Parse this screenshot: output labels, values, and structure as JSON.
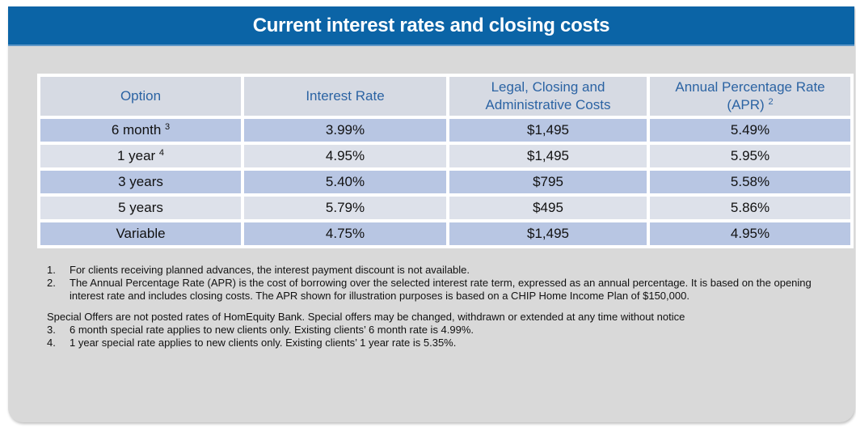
{
  "title": "Current interest rates and closing costs",
  "table": {
    "headers": {
      "option": "Option",
      "interest_rate": "Interest Rate",
      "costs_line1": "Legal, Closing and",
      "costs_line2": "Administrative Costs",
      "apr_line1": "Annual Percentage Rate",
      "apr_line2": "(APR)",
      "apr_sup": "2"
    },
    "rows": [
      {
        "option": "6 month",
        "sup": "3",
        "rate": "3.99%",
        "costs": "$1,495",
        "apr": "5.49%"
      },
      {
        "option": "1 year",
        "sup": "4",
        "rate": "4.95%",
        "costs": "$1,495",
        "apr": "5.95%"
      },
      {
        "option": "3 years",
        "sup": "",
        "rate": "5.40%",
        "costs": "$795",
        "apr": "5.58%"
      },
      {
        "option": "5 years",
        "sup": "",
        "rate": "5.79%",
        "costs": "$495",
        "apr": "5.86%"
      },
      {
        "option": "Variable",
        "sup": "",
        "rate": "4.75%",
        "costs": "$1,495",
        "apr": "4.95%"
      }
    ]
  },
  "notes": [
    {
      "num": "1.",
      "text": "For clients receiving planned advances, the interest payment discount is not available."
    },
    {
      "num": "2.",
      "text": "The Annual Percentage Rate (APR) is the cost of borrowing over the selected interest rate term, expressed as an annual percentage. It is based on the opening interest rate and includes closing costs. The APR shown for illustration purposes is based on a CHIP Home Income Plan of $150,000."
    }
  ],
  "special_offers": "Special Offers are not posted rates of HomEquity Bank.  Special offers may be changed, withdrawn or extended at any time without notice",
  "special_notes": [
    {
      "num": "3.",
      "text": "6 month special rate applies to new clients only.  Existing clients’ 6 month rate is 4.99%."
    },
    {
      "num": "4.",
      "text": "1 year special rate applies to new clients only.  Existing clients’ 1 year rate is 5.35%."
    }
  ],
  "colors": {
    "header_bg": "#0b64a6",
    "panel_bg": "#d9d9d9",
    "header_cell_bg": "#d6dae3",
    "header_text": "#2b63a3",
    "row_odd": "#b8c6e3",
    "row_even": "#dde1ea"
  }
}
